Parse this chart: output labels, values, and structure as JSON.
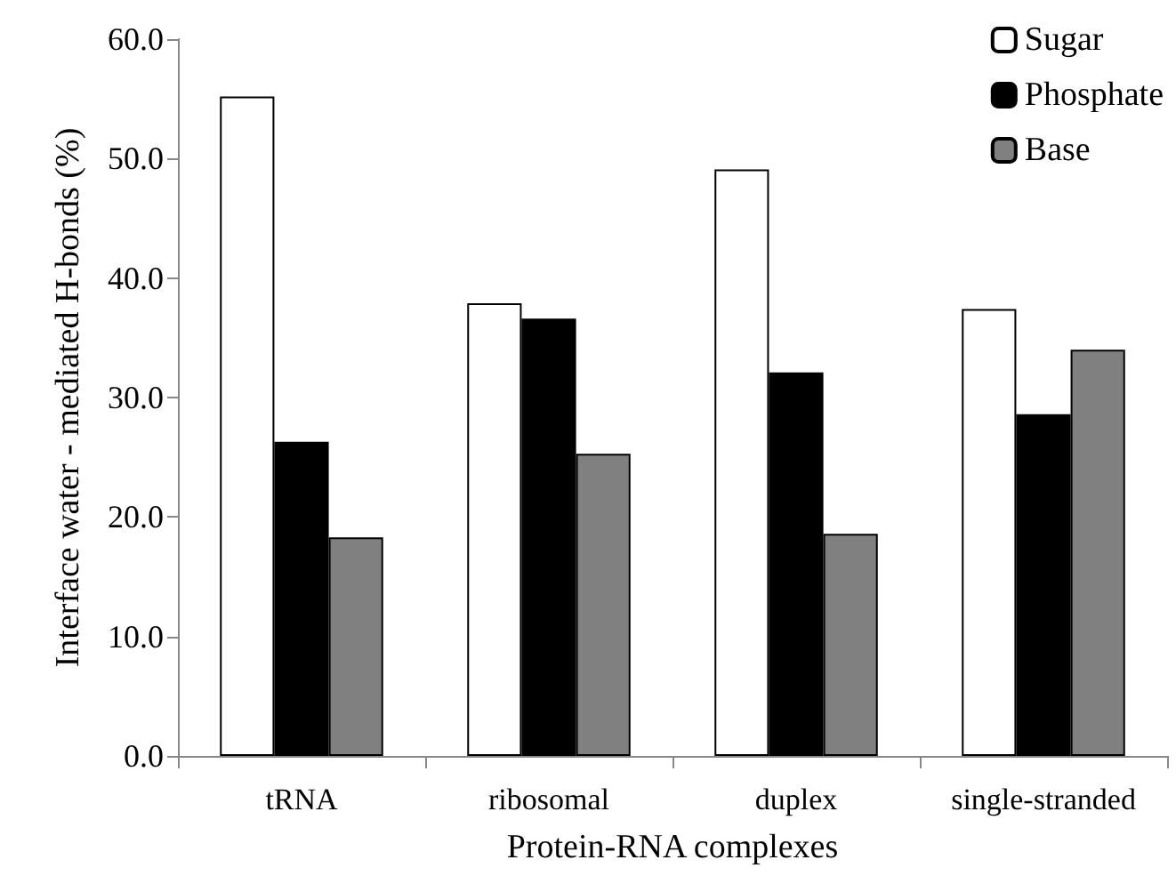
{
  "chart_data": {
    "type": "bar",
    "xlabel": "Protein-RNA complexes",
    "ylabel": "Interface water - mediated H-bonds (%)",
    "categories": [
      "tRNA",
      "ribosomal",
      "duplex",
      "single-stranded"
    ],
    "series": [
      {
        "name": "Sugar",
        "color": "#ffffff",
        "values": [
          55.2,
          37.9,
          49.1,
          37.4
        ]
      },
      {
        "name": "Phosphate",
        "color": "#000000",
        "values": [
          26.3,
          36.6,
          32.1,
          28.6
        ]
      },
      {
        "name": "Base",
        "color": "#808080",
        "values": [
          18.3,
          25.3,
          18.6,
          34.0
        ]
      }
    ],
    "ylim": [
      0,
      60
    ],
    "yticks": [
      {
        "value": 0,
        "label": "0.0"
      },
      {
        "value": 10,
        "label": "10.0"
      },
      {
        "value": 20,
        "label": "20.0"
      },
      {
        "value": 30,
        "label": "30.0"
      },
      {
        "value": 40,
        "label": "40.0"
      },
      {
        "value": 50,
        "label": "50.0"
      },
      {
        "value": 60,
        "label": "60.0"
      }
    ],
    "grid": false,
    "legend": "top right"
  }
}
